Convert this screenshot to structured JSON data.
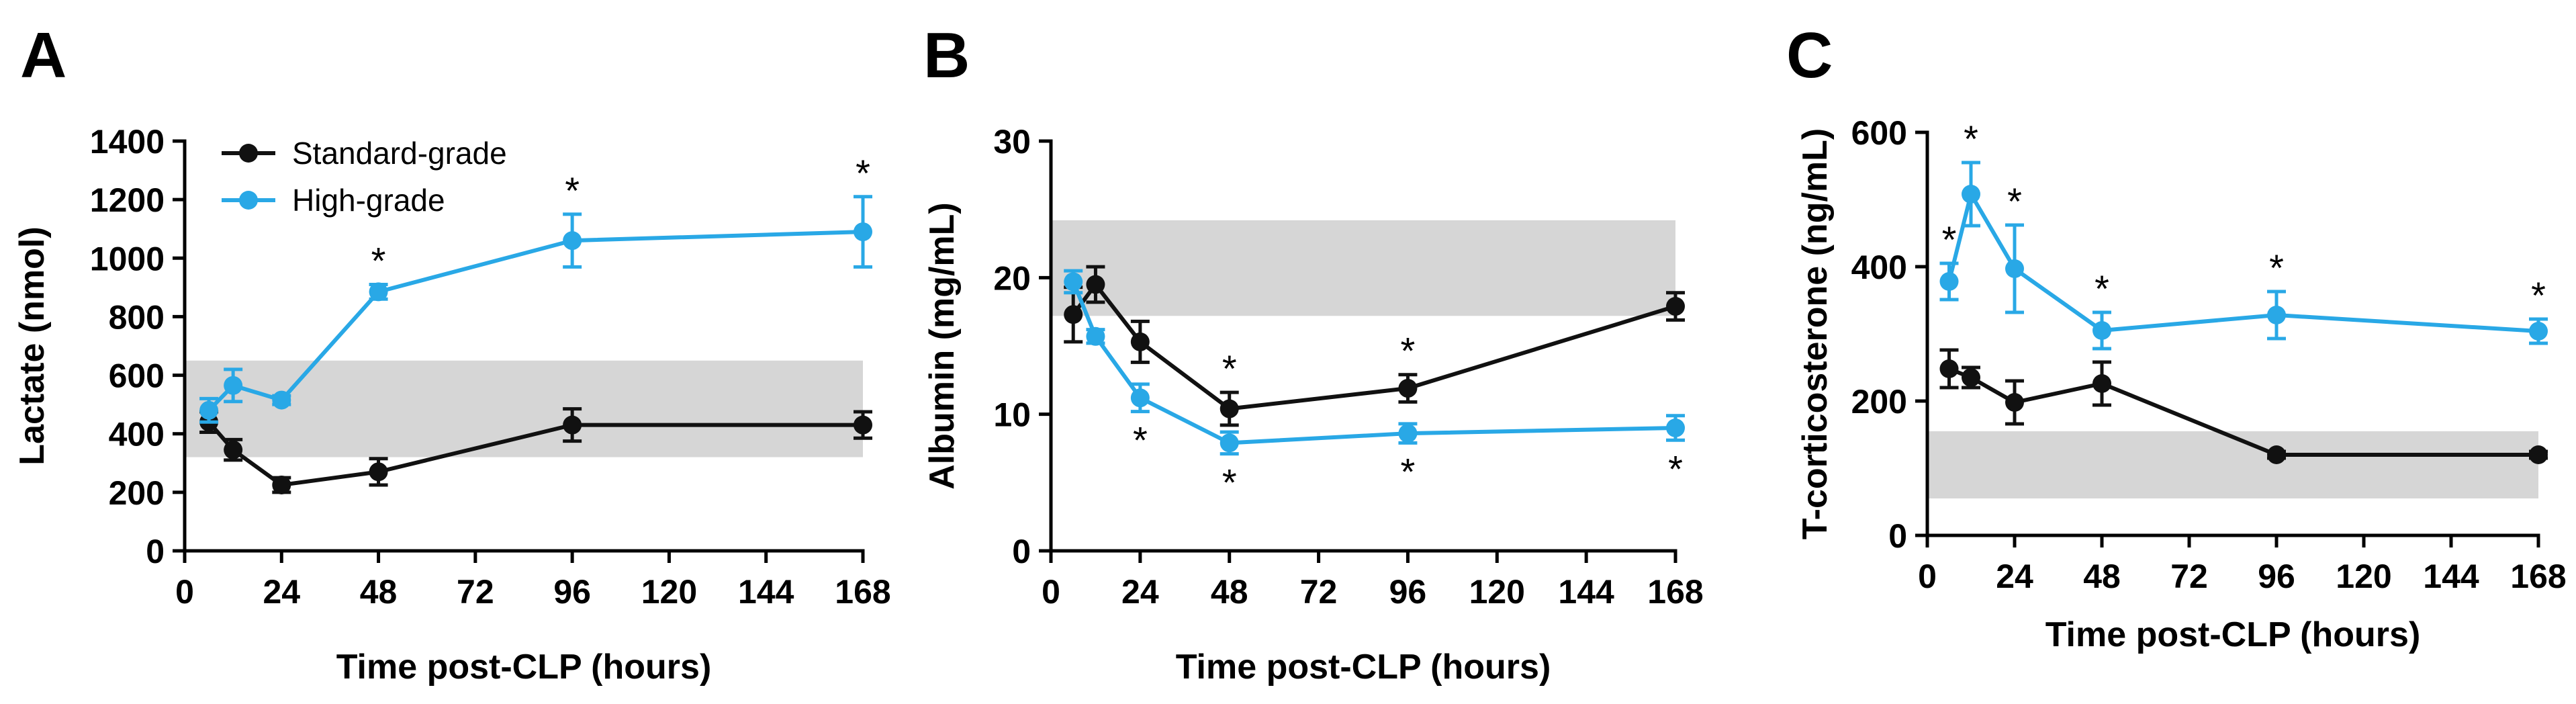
{
  "colors": {
    "standard": "#111111",
    "high": "#29a8e6",
    "reference_band": "#d6d6d6",
    "axis": "#000000"
  },
  "legend": {
    "standard_label": "Standard-grade",
    "high_label": "High-grade"
  },
  "chart_data": [
    {
      "panel_label": "A",
      "type": "line",
      "title": "",
      "xlabel": "Time post-CLP (hours)",
      "ylabel": "Lactate (nmol)",
      "xlim": [
        0,
        168
      ],
      "ylim": [
        0,
        1400
      ],
      "x_ticks": [
        0,
        24,
        48,
        72,
        96,
        120,
        144,
        168
      ],
      "y_ticks": [
        0,
        200,
        400,
        600,
        800,
        1000,
        1200,
        1400
      ],
      "reference_band": [
        320,
        650
      ],
      "legend_position": "top-left",
      "series": [
        {
          "name": "Standard-grade",
          "key": "standard",
          "x": [
            6,
            12,
            24,
            48,
            96,
            168
          ],
          "values": [
            440,
            345,
            225,
            270,
            430,
            430
          ],
          "errors": [
            35,
            35,
            25,
            45,
            55,
            45
          ],
          "sig": [
            false,
            false,
            false,
            false,
            false,
            false
          ]
        },
        {
          "name": "High-grade",
          "key": "high",
          "x": [
            6,
            12,
            24,
            48,
            96,
            168
          ],
          "values": [
            480,
            565,
            515,
            885,
            1060,
            1090
          ],
          "errors": [
            40,
            55,
            15,
            25,
            90,
            120
          ],
          "sig": [
            false,
            false,
            false,
            true,
            true,
            true
          ]
        }
      ]
    },
    {
      "panel_label": "B",
      "type": "line",
      "title": "",
      "xlabel": "Time post-CLP (hours)",
      "ylabel": "Albumin (mg/mL)",
      "xlim": [
        0,
        168
      ],
      "ylim": [
        0,
        30
      ],
      "x_ticks": [
        0,
        24,
        48,
        72,
        96,
        120,
        144,
        168
      ],
      "y_ticks": [
        0,
        10,
        20,
        30
      ],
      "reference_band": [
        17.2,
        24.2
      ],
      "series": [
        {
          "name": "Standard-grade",
          "key": "standard",
          "x": [
            6,
            12,
            24,
            48,
            96,
            168
          ],
          "values": [
            17.3,
            19.5,
            15.3,
            10.4,
            11.9,
            17.9
          ],
          "errors": [
            2.0,
            1.3,
            1.5,
            1.2,
            1.0,
            1.0
          ],
          "sig": [
            false,
            false,
            false,
            true,
            true,
            false
          ]
        },
        {
          "name": "High-grade",
          "key": "high",
          "x": [
            6,
            12,
            24,
            48,
            96,
            168
          ],
          "values": [
            19.7,
            15.7,
            11.2,
            7.9,
            8.6,
            9.0
          ],
          "errors": [
            0.8,
            0.5,
            1.0,
            0.8,
            0.7,
            0.9
          ],
          "sig": [
            false,
            false,
            true,
            true,
            true,
            true
          ]
        }
      ]
    },
    {
      "panel_label": "C",
      "type": "line",
      "title": "",
      "xlabel": "Time post-CLP (hours)",
      "ylabel": "T-corticosterone (ng/mL)",
      "xlim": [
        0,
        168
      ],
      "ylim": [
        0,
        600
      ],
      "x_ticks": [
        0,
        24,
        48,
        72,
        96,
        120,
        144,
        168
      ],
      "y_ticks": [
        0,
        200,
        400,
        600
      ],
      "reference_band": [
        55,
        155
      ],
      "series": [
        {
          "name": "Standard-grade",
          "key": "standard",
          "x": [
            6,
            12,
            24,
            48,
            96,
            168
          ],
          "values": [
            248,
            235,
            198,
            226,
            120,
            120
          ],
          "errors": [
            28,
            15,
            32,
            32,
            5,
            5
          ],
          "sig": [
            false,
            false,
            false,
            false,
            false,
            false
          ]
        },
        {
          "name": "High-grade",
          "key": "high",
          "x": [
            6,
            12,
            24,
            48,
            96,
            168
          ],
          "values": [
            378,
            508,
            397,
            305,
            328,
            304
          ],
          "errors": [
            27,
            47,
            65,
            27,
            35,
            18
          ],
          "sig": [
            true,
            true,
            true,
            true,
            true,
            true
          ]
        }
      ]
    }
  ]
}
